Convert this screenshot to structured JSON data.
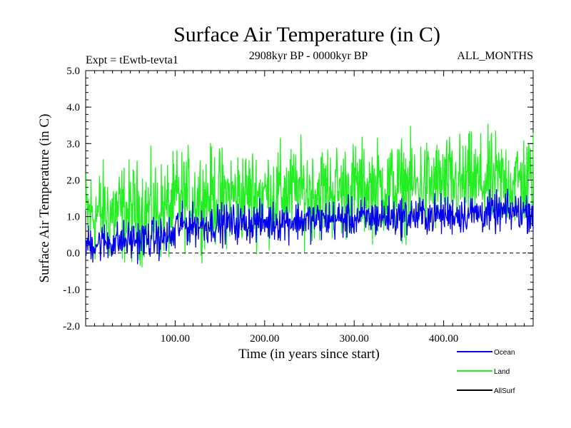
{
  "chart_data": {
    "type": "line",
    "title": "Surface Air Temperature (in C)",
    "subtitle_left": "Expt = tEwtb-tevta1",
    "subtitle_center": "2908kyr BP - 0000kyr BP",
    "subtitle_right": "ALL_MONTHS",
    "xlabel": "Time (in years since start)",
    "ylabel": "Surface Air Temperature (in C)",
    "xlim": [
      0,
      500
    ],
    "ylim": [
      -2.0,
      5.0
    ],
    "x_ticks": [
      100,
      200,
      300,
      400
    ],
    "x_tick_labels": [
      "100.00",
      "200.00",
      "300.00",
      "400.00"
    ],
    "y_ticks": [
      -2.0,
      -1.0,
      0.0,
      1.0,
      2.0,
      3.0,
      4.0,
      5.0
    ],
    "y_tick_labels": [
      "-2.0",
      "-1.0",
      "0.0",
      "1.0",
      "2.0",
      "3.0",
      "4.0",
      "5.0"
    ],
    "reference_line": {
      "y": 0.0,
      "style": "dashed"
    },
    "series": [
      {
        "name": "Land",
        "color": "#22ee22",
        "segments": [
          {
            "x_start": 0,
            "x_end": 100,
            "mean_start": 1.05,
            "mean_end": 1.2,
            "amplitude": 1.25
          },
          {
            "x_start": 100,
            "x_end": 500,
            "mean_start": 1.5,
            "mean_end": 2.0,
            "amplitude": 1.2
          }
        ]
      },
      {
        "name": "Ocean",
        "color": "#0000ee",
        "segments": [
          {
            "x_start": 0,
            "x_end": 100,
            "mean_start": 0.25,
            "mean_end": 0.45,
            "amplitude": 0.5
          },
          {
            "x_start": 100,
            "x_end": 500,
            "mean_start": 0.75,
            "mean_end": 1.15,
            "amplitude": 0.5
          }
        ]
      },
      {
        "name": "AllSurf",
        "color": "#000000",
        "segments": []
      }
    ],
    "legend": [
      {
        "name": "Ocean",
        "color": "#0000ee"
      },
      {
        "name": "Land",
        "color": "#22ee22"
      },
      {
        "name": "AllSurf",
        "color": "#000000"
      }
    ]
  }
}
